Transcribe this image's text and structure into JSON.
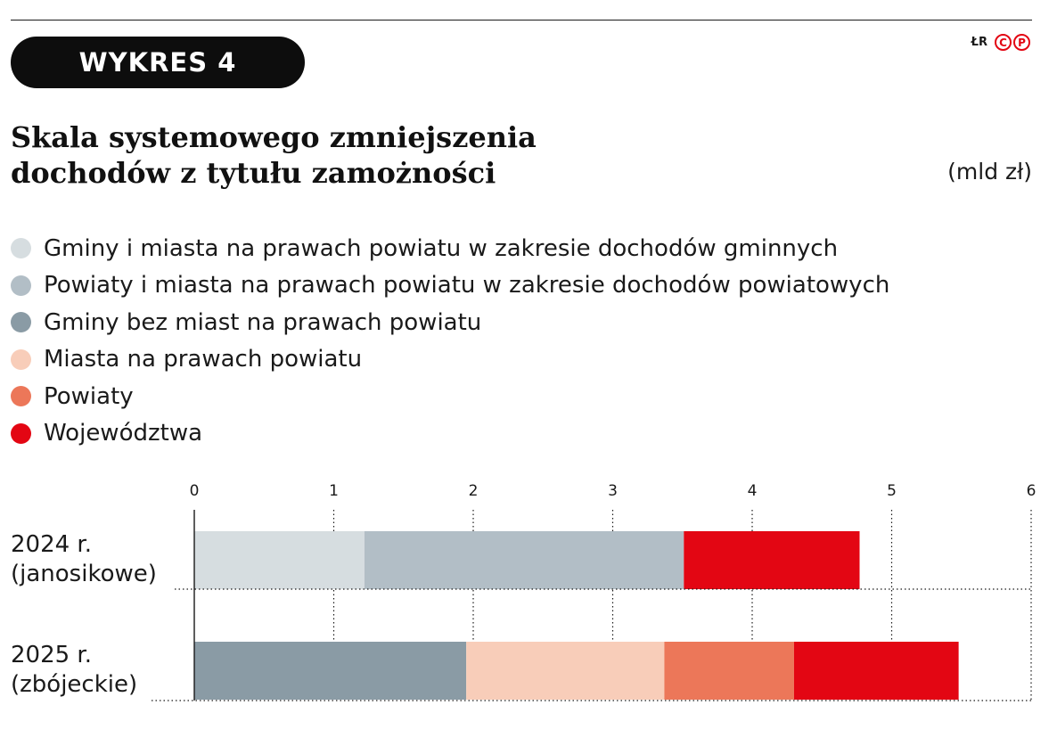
{
  "header": {
    "badge": "WYKRES 4",
    "logo_initials": "ŁR",
    "logo_c": "C",
    "logo_p": "P"
  },
  "title_lines": [
    "Skala systemowego zmniejszenia",
    "dochodów z tytułu zamożności"
  ],
  "unit": "(mld zł)",
  "chart_data": {
    "type": "bar",
    "orientation": "horizontal",
    "stacked": true,
    "title": "Skala systemowego zmniejszenia dochodów z tytułu zamożności",
    "unit": "(mld zł)",
    "xlim": [
      0,
      6
    ],
    "ticks": [
      "0",
      "1",
      "2",
      "3",
      "4",
      "5",
      "6"
    ],
    "grid": true,
    "legend_position": "top-left",
    "categories": [
      [
        "2024 r.",
        "(janosikowe)"
      ],
      [
        "2025 r.",
        "(zbójeckie)"
      ]
    ],
    "series": [
      {
        "name": "Gminy i miasta na prawach powiatu w zakresie dochodów gminnych",
        "color": "#d6dde0",
        "values": [
          1.22,
          0
        ]
      },
      {
        "name": "Powiaty i miasta na prawach powiatu w zakresie dochodów powiatowych",
        "color": "#b2bec6",
        "values": [
          2.29,
          0
        ]
      },
      {
        "name": "Gminy bez miast na prawach powiatu",
        "color": "#8a9ba5",
        "values": [
          0,
          1.95
        ]
      },
      {
        "name": "Miasta na prawach powiatu",
        "color": "#f8cdb9",
        "values": [
          0,
          1.42
        ]
      },
      {
        "name": "Powiaty",
        "color": "#ec7759",
        "values": [
          0,
          0.93
        ]
      },
      {
        "name": "Województwa",
        "color": "#e30613",
        "values": [
          1.26,
          1.18
        ]
      }
    ]
  }
}
